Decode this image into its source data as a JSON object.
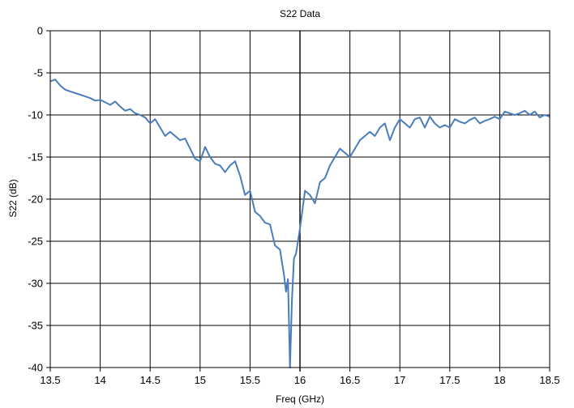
{
  "chart_data": {
    "type": "line",
    "title": "S22 Data",
    "xlabel": "Freq (GHz)",
    "ylabel": "S22 (dB)",
    "xlim": [
      13.5,
      18.5
    ],
    "ylim": [
      -40,
      0
    ],
    "xticks": [
      13.5,
      14,
      14.5,
      15,
      15.5,
      16,
      16.5,
      17,
      17.5,
      18,
      18.5
    ],
    "xtick_labels": [
      "13.5",
      "14",
      "14.5",
      "15",
      "15.5",
      "16",
      "16.5",
      "17",
      "17.5",
      "18",
      "18.5"
    ],
    "yticks": [
      0,
      -5,
      -10,
      -15,
      -20,
      -25,
      -30,
      -35,
      -40
    ],
    "ytick_labels": [
      "0",
      "-5",
      "-10",
      "-15",
      "-20",
      "-25",
      "-30",
      "-35",
      "-40"
    ],
    "grid": true,
    "legend": "none",
    "series": [
      {
        "color": "#4a7ebb",
        "x": [
          13.5,
          13.55,
          13.6,
          13.65,
          13.7,
          13.75,
          13.8,
          13.85,
          13.9,
          13.95,
          14.0,
          14.05,
          14.1,
          14.15,
          14.2,
          14.25,
          14.3,
          14.35,
          14.4,
          14.45,
          14.5,
          14.55,
          14.6,
          14.65,
          14.7,
          14.75,
          14.8,
          14.85,
          14.9,
          14.95,
          15.0,
          15.05,
          15.1,
          15.15,
          15.2,
          15.25,
          15.3,
          15.35,
          15.4,
          15.45,
          15.5,
          15.55,
          15.6,
          15.65,
          15.7,
          15.75,
          15.8,
          15.82,
          15.84,
          15.86,
          15.88,
          15.9,
          15.92,
          15.94,
          15.96,
          15.98,
          16.0,
          16.05,
          16.1,
          16.15,
          16.2,
          16.25,
          16.3,
          16.35,
          16.4,
          16.45,
          16.5,
          16.55,
          16.6,
          16.65,
          16.7,
          16.75,
          16.8,
          16.85,
          16.9,
          16.95,
          17.0,
          17.05,
          17.1,
          17.15,
          17.2,
          17.25,
          17.3,
          17.35,
          17.4,
          17.45,
          17.5,
          17.55,
          17.6,
          17.65,
          17.7,
          17.75,
          17.8,
          17.85,
          17.9,
          17.95,
          18.0,
          18.05,
          18.1,
          18.15,
          18.2,
          18.25,
          18.3,
          18.35,
          18.4,
          18.45,
          18.5
        ],
        "y": [
          -6.0,
          -5.8,
          -6.5,
          -7.0,
          -7.2,
          -7.4,
          -7.6,
          -7.8,
          -8.0,
          -8.3,
          -8.2,
          -8.5,
          -8.8,
          -8.4,
          -9.0,
          -9.5,
          -9.3,
          -9.8,
          -10.0,
          -10.3,
          -11.0,
          -10.5,
          -11.5,
          -12.5,
          -12.0,
          -12.5,
          -13.0,
          -12.8,
          -14.0,
          -15.2,
          -15.5,
          -13.8,
          -15.0,
          -15.8,
          -16.0,
          -16.8,
          -16.0,
          -15.5,
          -17.2,
          -19.5,
          -19.0,
          -21.5,
          -22.0,
          -22.8,
          -23.0,
          -25.5,
          -26.0,
          -27.5,
          -29.0,
          -31.0,
          -29.5,
          -40.0,
          -32.0,
          -27.0,
          -26.5,
          -25.0,
          -23.5,
          -19.0,
          -19.5,
          -20.5,
          -18.0,
          -17.5,
          -16.0,
          -15.0,
          -14.0,
          -14.5,
          -15.0,
          -14.0,
          -13.0,
          -12.5,
          -12.0,
          -12.5,
          -11.5,
          -11.0,
          -13.0,
          -11.5,
          -10.5,
          -11.0,
          -11.5,
          -10.5,
          -10.3,
          -11.5,
          -10.2,
          -11.0,
          -11.5,
          -11.2,
          -11.5,
          -10.5,
          -10.8,
          -11.0,
          -10.6,
          -10.3,
          -11.0,
          -10.7,
          -10.5,
          -10.2,
          -10.5,
          -9.6,
          -9.8,
          -10.0,
          -9.8,
          -9.5,
          -10.0,
          -9.6,
          -10.3,
          -10.0,
          -10.2
        ]
      }
    ]
  }
}
